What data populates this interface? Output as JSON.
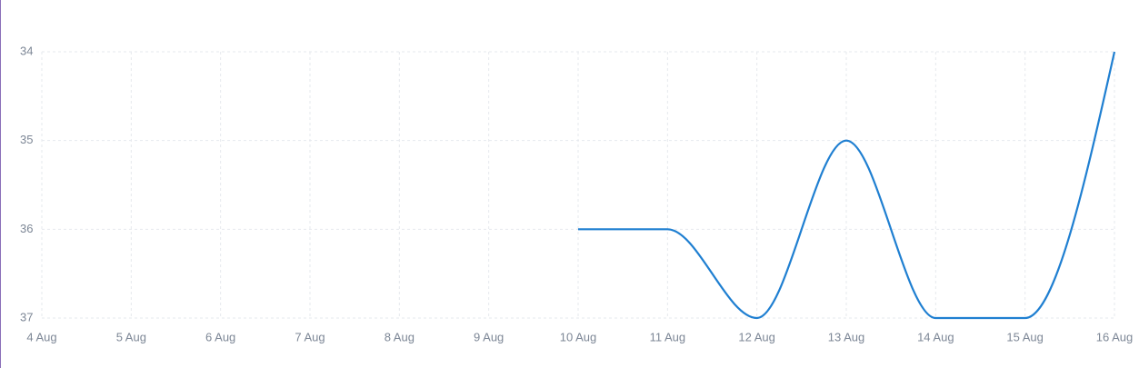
{
  "chart_data": {
    "type": "line",
    "categories": [
      "4 Aug",
      "5 Aug",
      "6 Aug",
      "7 Aug",
      "8 Aug",
      "9 Aug",
      "10 Aug",
      "11 Aug",
      "12 Aug",
      "13 Aug",
      "14 Aug",
      "15 Aug",
      "16 Aug"
    ],
    "series": [
      {
        "color": "#1f7fd1",
        "values": [
          null,
          null,
          null,
          null,
          null,
          null,
          36,
          36,
          37,
          35,
          37,
          37,
          34
        ]
      }
    ],
    "ylim": [
      37,
      34
    ],
    "yticks": [
      34,
      35,
      36,
      37
    ],
    "grid": true
  }
}
